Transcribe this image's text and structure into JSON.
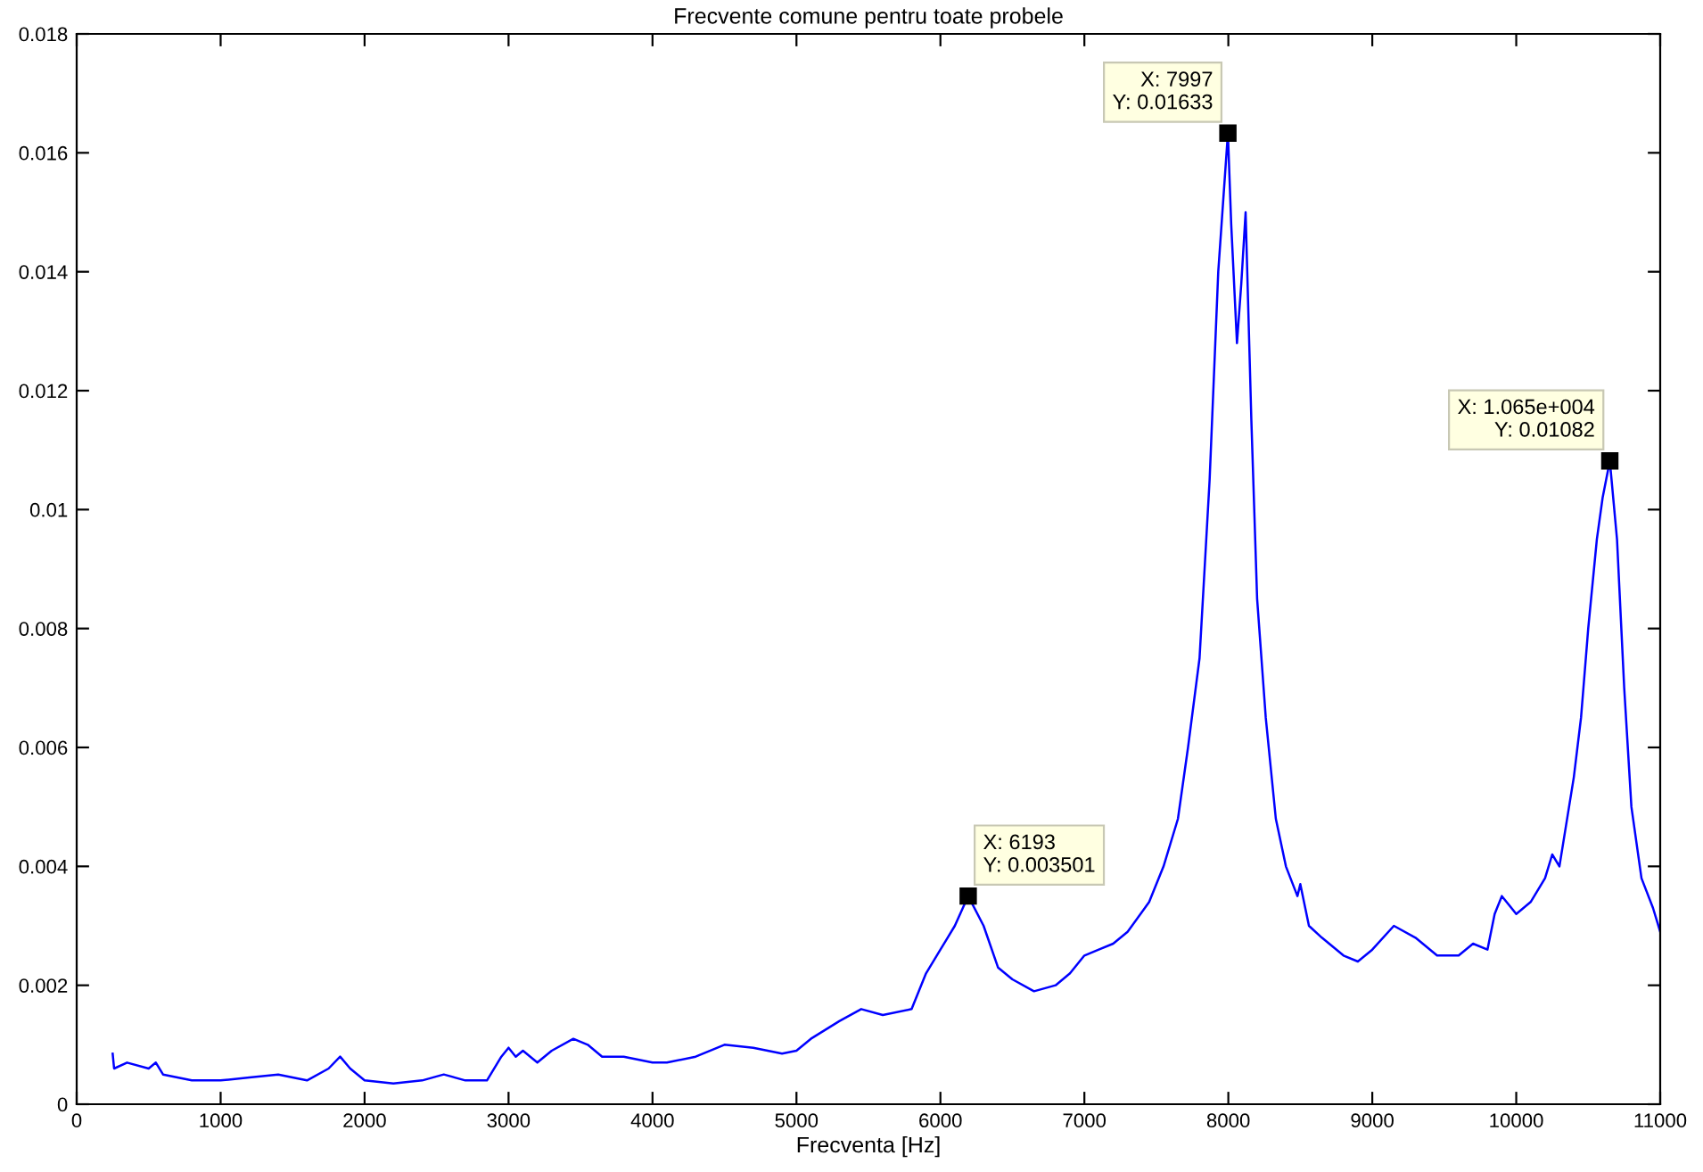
{
  "chart_data": {
    "type": "line",
    "title": "Frecvente comune pentru toate probele",
    "xlabel": "Frecventa [Hz]",
    "x": [
      250,
      260,
      350,
      500,
      550,
      600,
      800,
      1000,
      1200,
      1400,
      1600,
      1750,
      1830,
      1900,
      2000,
      2200,
      2400,
      2550,
      2700,
      2850,
      2950,
      3000,
      3050,
      3100,
      3200,
      3300,
      3450,
      3550,
      3650,
      3800,
      4000,
      4100,
      4300,
      4500,
      4700,
      4900,
      5000,
      5100,
      5300,
      5450,
      5600,
      5800,
      5900,
      6000,
      6050,
      6100,
      6193,
      6300,
      6400,
      6500,
      6650,
      6800,
      6900,
      7000,
      7100,
      7200,
      7300,
      7450,
      7550,
      7650,
      7720,
      7800,
      7870,
      7930,
      7997,
      8020,
      8060,
      8090,
      8120,
      8160,
      8200,
      8260,
      8330,
      8400,
      8480,
      8500,
      8560,
      8650,
      8800,
      8900,
      9000,
      9150,
      9300,
      9450,
      9600,
      9700,
      9800,
      9850,
      9900,
      10000,
      10100,
      10200,
      10250,
      10300,
      10400,
      10450,
      10500,
      10560,
      10600,
      10650,
      10700,
      10750,
      10800,
      10870,
      10950,
      11000
    ],
    "series": [
      {
        "color": "#0000ff",
        "values": [
          0.00085,
          0.0006,
          0.0007,
          0.0006,
          0.0007,
          0.0005,
          0.0004,
          0.0004,
          0.00045,
          0.0005,
          0.0004,
          0.0006,
          0.0008,
          0.0006,
          0.0004,
          0.00035,
          0.0004,
          0.0005,
          0.0004,
          0.0004,
          0.0008,
          0.00095,
          0.0008,
          0.0009,
          0.0007,
          0.0009,
          0.0011,
          0.001,
          0.0008,
          0.0008,
          0.0007,
          0.0007,
          0.0008,
          0.001,
          0.00095,
          0.00085,
          0.0009,
          0.0011,
          0.0014,
          0.0016,
          0.0015,
          0.0016,
          0.0022,
          0.0026,
          0.0028,
          0.003,
          0.003501,
          0.003,
          0.0023,
          0.0021,
          0.0019,
          0.002,
          0.0022,
          0.0025,
          0.0026,
          0.0027,
          0.0029,
          0.0034,
          0.004,
          0.0048,
          0.006,
          0.0075,
          0.0105,
          0.014,
          0.01633,
          0.0148,
          0.0128,
          0.0138,
          0.015,
          0.0115,
          0.0085,
          0.0065,
          0.0048,
          0.004,
          0.0035,
          0.0037,
          0.003,
          0.0028,
          0.0025,
          0.0024,
          0.0026,
          0.003,
          0.0028,
          0.0025,
          0.0025,
          0.0027,
          0.0026,
          0.0032,
          0.0035,
          0.0032,
          0.0034,
          0.0038,
          0.0042,
          0.004,
          0.0055,
          0.0065,
          0.008,
          0.0095,
          0.0102,
          0.01082,
          0.0095,
          0.007,
          0.005,
          0.0038,
          0.0033,
          0.0029
        ]
      }
    ],
    "xlim": [
      0,
      11000
    ],
    "xticks": [
      0,
      1000,
      2000,
      3000,
      4000,
      5000,
      6000,
      7000,
      8000,
      9000,
      10000,
      11000
    ],
    "ylim": [
      0,
      0.018
    ],
    "yticks": [
      0,
      0.002,
      0.004,
      0.006,
      0.008,
      0.01,
      0.012,
      0.014,
      0.016,
      0.018
    ],
    "grid": false,
    "legend": false,
    "marker": "none",
    "line_style": "solid",
    "annotations": [
      {
        "text": "X: 6193\nY: 0.003501",
        "x": 6193,
        "y": 0.003501
      },
      {
        "text": "X: 7997\nY: 0.01633",
        "x": 7997,
        "y": 0.01633
      },
      {
        "text": "X: 1.065e+004\nY: 0.01082",
        "x": 10650,
        "y": 0.01082
      }
    ]
  }
}
